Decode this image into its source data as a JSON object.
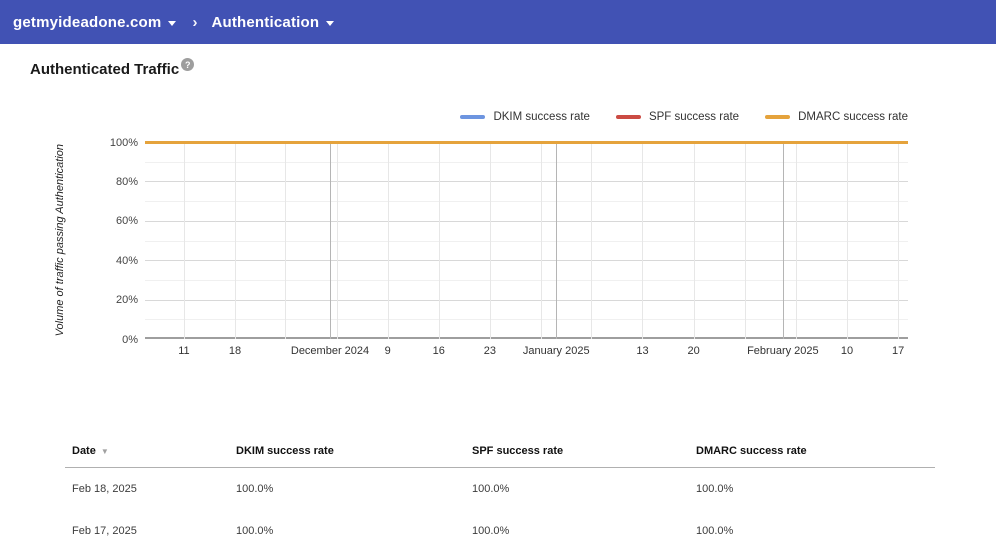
{
  "topbar": {
    "bg_color": "#4152b4",
    "domain_selector_label": "getmyideadone.com",
    "chevron": "›",
    "section_selector_label": "Authentication"
  },
  "page": {
    "title": "Authenticated Traffic",
    "help_glyph": "?"
  },
  "chart_data": {
    "type": "line",
    "title": "Authenticated Traffic",
    "ylabel": "Volume of traffic passing Authentication",
    "ylim": [
      0,
      100
    ],
    "y_major_ticks": [
      100,
      80,
      60,
      40,
      20,
      0
    ],
    "y_minor_ticks": [
      90,
      70,
      50,
      30,
      10
    ],
    "y_tick_suffix": "%",
    "grid": "on",
    "legend_position": "top-right",
    "x_axis_type": "date-weekly",
    "x_weekly_ticks": [
      {
        "pos": 0.051,
        "label": "11"
      },
      {
        "pos": 0.118,
        "label": "18"
      },
      {
        "pos": 0.184,
        "label": ""
      },
      {
        "pos": 0.251,
        "label": ""
      },
      {
        "pos": 0.318,
        "label": "9"
      },
      {
        "pos": 0.385,
        "label": "16"
      },
      {
        "pos": 0.452,
        "label": "23"
      },
      {
        "pos": 0.519,
        "label": ""
      },
      {
        "pos": 0.585,
        "label": ""
      },
      {
        "pos": 0.652,
        "label": "13"
      },
      {
        "pos": 0.719,
        "label": "20"
      },
      {
        "pos": 0.786,
        "label": ""
      },
      {
        "pos": 0.853,
        "label": ""
      },
      {
        "pos": 0.92,
        "label": "10"
      },
      {
        "pos": 0.987,
        "label": "17"
      }
    ],
    "x_month_ticks": [
      {
        "pos": 0.2425,
        "label": "December 2024"
      },
      {
        "pos": 0.539,
        "label": "January 2025"
      },
      {
        "pos": 0.836,
        "label": "February 2025"
      }
    ],
    "series": [
      {
        "name": "DKIM success rate",
        "color": "#6D95E0",
        "value": 100,
        "shape": "flat line at 100% across entire x range"
      },
      {
        "name": "SPF success rate",
        "color": "#CB4B43",
        "value": 100,
        "shape": "flat line at 100% across entire x range"
      },
      {
        "name": "DMARC success rate",
        "color": "#E5A33C",
        "value": 100,
        "shape": "flat line at 100% across entire x range"
      }
    ]
  },
  "table": {
    "columns": [
      {
        "label": "Date",
        "sortable": true,
        "sort_icon": "▼"
      },
      {
        "label": "DKIM success rate",
        "sortable": false
      },
      {
        "label": "SPF success rate",
        "sortable": false
      },
      {
        "label": "DMARC success rate",
        "sortable": false
      }
    ],
    "rows": [
      [
        "Feb 18, 2025",
        "100.0%",
        "100.0%",
        "100.0%"
      ],
      [
        "Feb 17, 2025",
        "100.0%",
        "100.0%",
        "100.0%"
      ]
    ]
  }
}
